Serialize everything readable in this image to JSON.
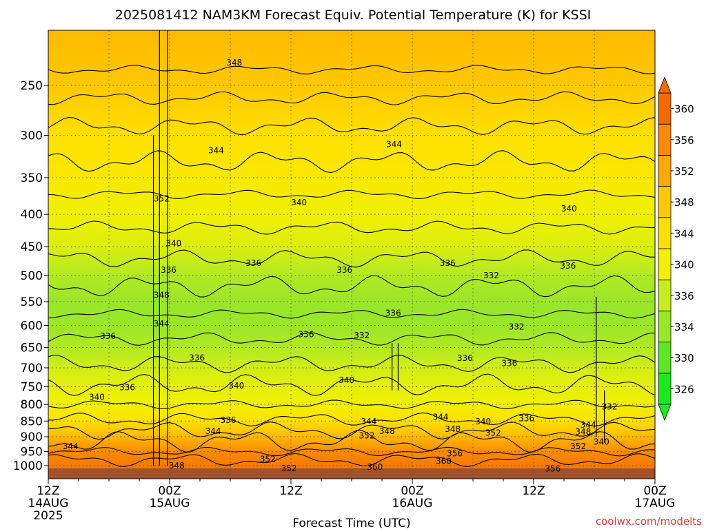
{
  "chart_data": {
    "type": "heatmap",
    "title": "2025081412 NAM3KM Forecast Equiv. Potential Temperature (K) for KSSI",
    "xlabel": "Forecast Time (UTC)",
    "ylabel": "",
    "credit": "coolwx.com/modelts",
    "x_ticks": [
      {
        "hour": 0,
        "line1": "12Z",
        "line2": "14AUG",
        "line3": "2025"
      },
      {
        "hour": 12,
        "line1": "00Z",
        "line2": "15AUG",
        "line3": ""
      },
      {
        "hour": 24,
        "line1": "12Z",
        "line2": "",
        "line3": ""
      },
      {
        "hour": 36,
        "line1": "00Z",
        "line2": "16AUG",
        "line3": ""
      },
      {
        "hour": 48,
        "line1": "12Z",
        "line2": "",
        "line3": ""
      },
      {
        "hour": 60,
        "line1": "00Z",
        "line2": "17AUG",
        "line3": ""
      }
    ],
    "xlim": [
      0,
      60
    ],
    "y_ticks": [
      250,
      300,
      350,
      400,
      450,
      500,
      550,
      600,
      650,
      700,
      750,
      800,
      850,
      900,
      950,
      1000
    ],
    "ylim": [
      200,
      1030
    ],
    "y_scale": "log",
    "grid": true,
    "colorbar": {
      "ticks": [
        "326",
        "330",
        "334",
        "336",
        "340",
        "344",
        "348",
        "352",
        "356",
        "360"
      ],
      "colors": [
        "#1ee81e",
        "#5ee61e",
        "#9ae628",
        "#c8ec1e",
        "#f0f000",
        "#ffe000",
        "#ffc800",
        "#ffa800",
        "#fa8a00",
        "#f06a00"
      ],
      "extend": "both"
    },
    "layers": [
      {
        "p": 200,
        "theta": 350
      },
      {
        "p": 250,
        "theta": 348
      },
      {
        "p": 300,
        "theta": 344
      },
      {
        "p": 350,
        "theta": 342
      },
      {
        "p": 400,
        "theta": 340
      },
      {
        "p": 450,
        "theta": 338
      },
      {
        "p": 500,
        "theta": 335
      },
      {
        "p": 550,
        "theta": 334
      },
      {
        "p": 600,
        "theta": 334
      },
      {
        "p": 650,
        "theta": 335
      },
      {
        "p": 700,
        "theta": 337
      },
      {
        "p": 750,
        "theta": 339
      },
      {
        "p": 800,
        "theta": 340
      },
      {
        "p": 850,
        "theta": 344
      },
      {
        "p": 900,
        "theta": 350
      },
      {
        "p": 950,
        "theta": 356
      },
      {
        "p": 1000,
        "theta": 358
      }
    ],
    "contour_labels": [
      {
        "hour": 18.4,
        "p": 230,
        "text": "348"
      },
      {
        "hour": 16.6,
        "p": 317,
        "text": "344"
      },
      {
        "hour": 34.2,
        "p": 310,
        "text": "344"
      },
      {
        "hour": 11.2,
        "p": 378,
        "text": "352"
      },
      {
        "hour": 24.8,
        "p": 383,
        "text": "340"
      },
      {
        "hour": 51.5,
        "p": 392,
        "text": "340"
      },
      {
        "hour": 12.4,
        "p": 445,
        "text": "340"
      },
      {
        "hour": 20.3,
        "p": 478,
        "text": "336"
      },
      {
        "hour": 11.9,
        "p": 490,
        "text": "336"
      },
      {
        "hour": 29.3,
        "p": 490,
        "text": "336"
      },
      {
        "hour": 39.5,
        "p": 478,
        "text": "336"
      },
      {
        "hour": 51.4,
        "p": 483,
        "text": "336"
      },
      {
        "hour": 43.8,
        "p": 500,
        "text": "332"
      },
      {
        "hour": 11.2,
        "p": 537,
        "text": "348"
      },
      {
        "hour": 34.1,
        "p": 573,
        "text": "336"
      },
      {
        "hour": 11.2,
        "p": 596,
        "text": "344"
      },
      {
        "hour": 5.9,
        "p": 624,
        "text": "336"
      },
      {
        "hour": 25.5,
        "p": 620,
        "text": "336"
      },
      {
        "hour": 31.0,
        "p": 622,
        "text": "332"
      },
      {
        "hour": 46.3,
        "p": 603,
        "text": "332"
      },
      {
        "hour": 14.7,
        "p": 675,
        "text": "336"
      },
      {
        "hour": 41.2,
        "p": 676,
        "text": "336"
      },
      {
        "hour": 45.6,
        "p": 689,
        "text": "336"
      },
      {
        "hour": 29.5,
        "p": 732,
        "text": "340"
      },
      {
        "hour": 18.6,
        "p": 747,
        "text": "340"
      },
      {
        "hour": 7.8,
        "p": 752,
        "text": "336"
      },
      {
        "hour": 4.8,
        "p": 779,
        "text": "340"
      },
      {
        "hour": 55.5,
        "p": 807,
        "text": "332"
      },
      {
        "hour": 17.8,
        "p": 847,
        "text": "336"
      },
      {
        "hour": 31.7,
        "p": 852,
        "text": "344"
      },
      {
        "hour": 38.8,
        "p": 838,
        "text": "344"
      },
      {
        "hour": 43.0,
        "p": 852,
        "text": "340"
      },
      {
        "hour": 47.3,
        "p": 842,
        "text": "336"
      },
      {
        "hour": 53.4,
        "p": 862,
        "text": "344"
      },
      {
        "hour": 16.3,
        "p": 882,
        "text": "344"
      },
      {
        "hour": 33.5,
        "p": 882,
        "text": "348"
      },
      {
        "hour": 40.0,
        "p": 875,
        "text": "348"
      },
      {
        "hour": 52.9,
        "p": 884,
        "text": "348"
      },
      {
        "hour": 31.5,
        "p": 897,
        "text": "352"
      },
      {
        "hour": 44.0,
        "p": 887,
        "text": "352"
      },
      {
        "hour": 2.2,
        "p": 932,
        "text": "344"
      },
      {
        "hour": 52.4,
        "p": 932,
        "text": "352"
      },
      {
        "hour": 54.7,
        "p": 917,
        "text": "340"
      },
      {
        "hour": 40.2,
        "p": 957,
        "text": "356"
      },
      {
        "hour": 21.7,
        "p": 977,
        "text": "352"
      },
      {
        "hour": 39.1,
        "p": 984,
        "text": "360"
      },
      {
        "hour": 12.7,
        "p": 1000,
        "text": "348"
      },
      {
        "hour": 23.8,
        "p": 1010,
        "text": "352"
      },
      {
        "hour": 32.3,
        "p": 1005,
        "text": "360"
      },
      {
        "hour": 49.9,
        "p": 1012,
        "text": "356"
      }
    ]
  }
}
